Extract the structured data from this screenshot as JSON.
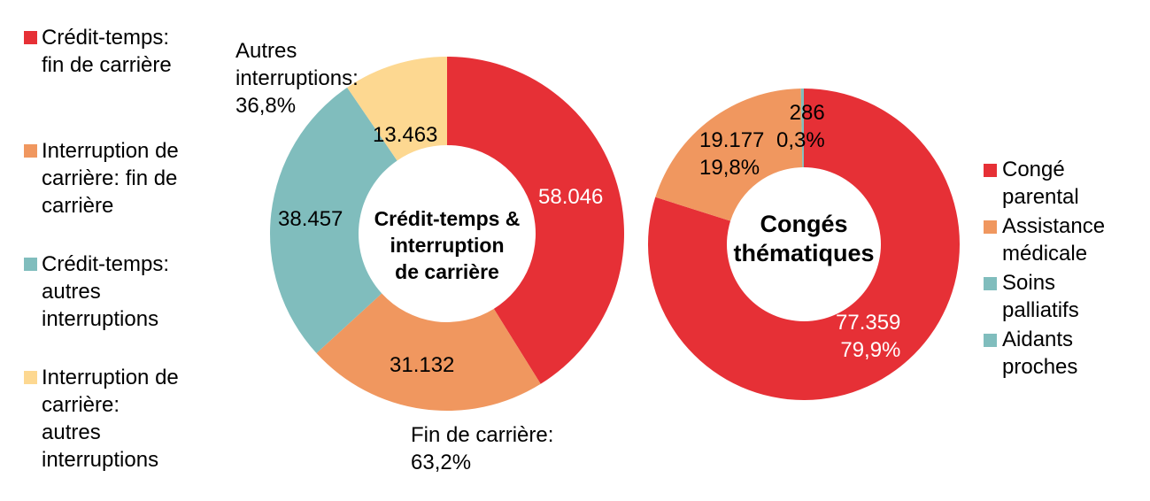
{
  "colors": {
    "red": "#e63036",
    "orange": "#f0975f",
    "teal": "#80bdbd",
    "yellow": "#fdd891"
  },
  "legend_left": [
    {
      "label": "Crédit-temps:\nfin de carrière",
      "color": "#e63036"
    },
    {
      "label": "Interruption de\ncarrière: fin de\ncarrière",
      "color": "#f0975f"
    },
    {
      "label": "Crédit-temps:\nautres\ninterruptions",
      "color": "#80bdbd"
    },
    {
      "label": "Interruption de\ncarrière:\nautres\ninterruptions",
      "color": "#fdd891"
    }
  ],
  "legend_right": [
    {
      "label": "Congé\nparental",
      "color": "#e63036"
    },
    {
      "label": "Assistance\nmédicale",
      "color": "#f0975f"
    },
    {
      "label": "Soins\npalliatifs",
      "color": "#80bdbd"
    },
    {
      "label": "Aidants\nproches",
      "color": "#80bdbd"
    }
  ],
  "annotations": {
    "autres": "Autres\ninterruptions:\n36,8%",
    "fin": "Fin de carrière:\n63,2%"
  },
  "labels": {
    "left": [
      "58.046",
      "31.132",
      "38.457",
      "13.463"
    ],
    "right": [
      "77.359\n79,9%",
      "19.177\n19,8%",
      "286\n0,3%"
    ]
  },
  "chart_data": [
    {
      "type": "pie",
      "variant": "donut",
      "title": "Crédit-temps & interruption de carrière",
      "center_label": "Crédit-temps &\ninterruption\nde carrière",
      "categories": [
        "Crédit-temps: fin de carrière",
        "Interruption de carrière: fin de carrière",
        "Crédit-temps: autres interruptions",
        "Interruption de carrière: autres interruptions"
      ],
      "values": [
        58046,
        31132,
        38457,
        13463
      ],
      "colors": [
        "#e63036",
        "#f0975f",
        "#80bdbd",
        "#fdd891"
      ],
      "group_annotations": [
        {
          "label": "Fin de carrière",
          "percent": 63.2
        },
        {
          "label": "Autres interruptions",
          "percent": 36.8
        }
      ],
      "legend_position": "left"
    },
    {
      "type": "pie",
      "variant": "donut",
      "title": "Congés thématiques",
      "center_label": "Congés\nthématiques",
      "categories": [
        "Congé parental",
        "Assistance médicale",
        "Soins palliatifs",
        "Aidants proches"
      ],
      "values": [
        77359,
        19177,
        286,
        0
      ],
      "percents": [
        79.9,
        19.8,
        0.3,
        0
      ],
      "colors": [
        "#e63036",
        "#f0975f",
        "#80bdbd",
        "#80bdbd"
      ],
      "legend_position": "right"
    }
  ]
}
